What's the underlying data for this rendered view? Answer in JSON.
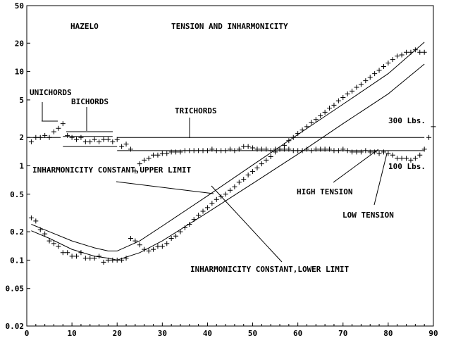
{
  "chart_data": {
    "type": "scatter",
    "title": "HAZELO",
    "subtitle": "TENSION AND INHARMONICITY",
    "xlabel": "",
    "ylabel": "",
    "xlim": [
      0,
      90
    ],
    "ylim": [
      0.02,
      50
    ],
    "yscale": "log",
    "grid": false,
    "x_ticks": [
      0,
      10,
      20,
      30,
      40,
      50,
      60,
      70,
      80,
      90
    ],
    "x_tick_labels": [
      "0",
      "10",
      "20",
      "30",
      "40",
      "50",
      "60",
      "70",
      "80",
      "90"
    ],
    "y_ticks": [
      0.02,
      0.05,
      0.1,
      0.2,
      0.5,
      1,
      2,
      5,
      10,
      20,
      50
    ],
    "y_tick_labels": [
      "0.02",
      "0.05",
      "0.1",
      "0.2",
      "0.5",
      "1",
      "2",
      "5",
      "10",
      "20",
      "50"
    ],
    "series": [
      {
        "name": "",
        "kind": "points",
        "x": [
          1,
          2,
          3,
          4,
          5,
          6,
          7,
          8,
          9,
          10,
          11,
          12,
          13,
          14,
          15,
          16,
          17,
          18,
          19,
          20,
          21,
          22,
          23,
          24,
          25,
          26,
          27,
          28,
          29,
          30,
          31,
          32,
          33,
          34,
          35,
          36,
          37,
          38,
          39,
          40,
          41,
          42,
          43,
          44,
          45,
          46,
          47,
          48,
          49,
          50,
          51,
          52,
          53,
          54,
          55,
          56,
          57,
          58,
          59,
          60,
          61,
          62,
          63,
          64,
          65,
          66,
          67,
          68,
          69,
          70,
          71,
          72,
          73,
          74,
          75,
          76,
          77,
          78,
          79,
          80,
          81,
          82,
          83,
          84,
          85,
          86,
          87,
          88,
          89,
          90
        ],
        "y": [
          1.8,
          2.0,
          2.0,
          2.1,
          2.0,
          2.3,
          2.5,
          2.8,
          2.1,
          2.0,
          1.9,
          2.0,
          1.8,
          1.8,
          1.9,
          1.8,
          1.9,
          1.9,
          1.8,
          1.9,
          1.6,
          1.7,
          1.5,
          0.88,
          1.05,
          1.15,
          1.2,
          1.3,
          1.3,
          1.35,
          1.35,
          1.4,
          1.4,
          1.4,
          1.45,
          1.45,
          1.45,
          1.45,
          1.45,
          1.45,
          1.5,
          1.45,
          1.45,
          1.45,
          1.5,
          1.45,
          1.5,
          1.6,
          1.6,
          1.55,
          1.5,
          1.5,
          1.5,
          1.45,
          1.5,
          1.5,
          1.5,
          1.5,
          1.45,
          1.45,
          1.45,
          1.5,
          1.45,
          1.5,
          1.5,
          1.5,
          1.5,
          1.45,
          1.45,
          1.5,
          1.45,
          1.4,
          1.4,
          1.4,
          1.45,
          1.4,
          1.4,
          1.35,
          1.4,
          1.35,
          1.3,
          1.2,
          1.2,
          1.2,
          1.15,
          1.2,
          1.3,
          1.5,
          2.0,
          2.6
        ]
      },
      {
        "name": "",
        "kind": "points",
        "x": [
          1,
          2,
          3,
          4,
          5,
          6,
          7,
          8,
          9,
          10,
          11,
          12,
          13,
          14,
          15,
          16,
          17,
          18,
          19,
          20,
          21,
          22,
          23,
          24,
          25,
          26,
          27,
          28,
          29,
          30,
          31,
          32,
          33,
          34,
          35,
          36,
          37,
          38,
          39,
          40,
          41,
          42,
          43,
          44,
          45,
          46,
          47,
          48,
          49,
          50,
          51,
          52,
          53,
          54,
          55,
          56,
          57,
          58,
          59,
          60,
          61,
          62,
          63,
          64,
          65,
          66,
          67,
          68,
          69,
          70,
          71,
          72,
          73,
          74,
          75,
          76,
          77,
          78,
          79,
          80,
          81,
          82,
          83,
          84,
          85,
          86,
          87,
          88
        ],
        "y": [
          0.28,
          0.26,
          0.21,
          0.19,
          0.16,
          0.15,
          0.14,
          0.12,
          0.12,
          0.11,
          0.11,
          0.12,
          0.105,
          0.105,
          0.105,
          0.11,
          0.095,
          0.1,
          0.1,
          0.1,
          0.1,
          0.105,
          0.17,
          0.16,
          0.145,
          0.13,
          0.125,
          0.13,
          0.14,
          0.14,
          0.15,
          0.17,
          0.18,
          0.2,
          0.22,
          0.24,
          0.27,
          0.3,
          0.33,
          0.36,
          0.4,
          0.44,
          0.47,
          0.5,
          0.55,
          0.6,
          0.67,
          0.72,
          0.8,
          0.87,
          0.95,
          1.05,
          1.15,
          1.25,
          1.4,
          1.5,
          1.65,
          1.85,
          2.0,
          2.2,
          2.4,
          2.6,
          2.9,
          3.1,
          3.4,
          3.7,
          4.1,
          4.4,
          4.9,
          5.3,
          5.8,
          6.2,
          6.8,
          7.3,
          8.0,
          8.7,
          9.5,
          10.3,
          11.3,
          12.3,
          13.4,
          14.6,
          15.0,
          16.0,
          16.0,
          17.0,
          16.0,
          16.0
        ]
      },
      {
        "name": "",
        "kind": "line",
        "x": [
          1,
          5,
          10,
          15,
          18,
          20,
          25,
          30,
          40,
          50,
          60,
          70,
          80,
          88
        ],
        "y": [
          0.24,
          0.2,
          0.16,
          0.135,
          0.125,
          0.125,
          0.16,
          0.23,
          0.48,
          1.02,
          2.15,
          4.5,
          9.5,
          20.5
        ]
      },
      {
        "name": "",
        "kind": "line",
        "x": [
          1,
          5,
          10,
          15,
          18,
          20,
          25,
          30,
          40,
          50,
          60,
          70,
          80,
          88
        ],
        "y": [
          0.205,
          0.17,
          0.13,
          0.11,
          0.105,
          0.1,
          0.12,
          0.16,
          0.32,
          0.65,
          1.33,
          2.8,
          5.8,
          12.0
        ]
      }
    ],
    "reference_lines": [
      {
        "label": "UNICHORDS",
        "x": [
          0,
          7.5
        ],
        "y": 2.0
      },
      {
        "label": "BICHORDS",
        "x": [
          8,
          19
        ],
        "y": 2.05
      },
      {
        "label": "",
        "x": [
          8,
          20
        ],
        "y": 1.6
      },
      {
        "label": "300 Lbs.",
        "x": [
          20,
          88
        ],
        "y": 2.0
      },
      {
        "label": "100 Lbs.",
        "x": [
          20,
          88
        ],
        "y": 1.45
      }
    ],
    "annotations": [
      {
        "text": "UNICHORDS"
      },
      {
        "text": "BICHORDS"
      },
      {
        "text": "TRICHORDS"
      },
      {
        "text": "300 Lbs."
      },
      {
        "text": "100 Lbs."
      },
      {
        "text": "INHARMONICITY CONSTANT,UPPER LIMIT"
      },
      {
        "text": "HIGH TENSION"
      },
      {
        "text": "LOW TENSION"
      },
      {
        "text": "INHARMONICITY CONSTANT,LOWER LIMIT"
      }
    ]
  }
}
